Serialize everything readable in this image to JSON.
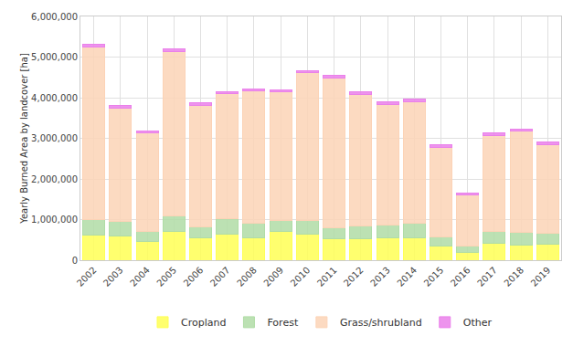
{
  "chart_data": {
    "type": "bar",
    "y_label": "Yearly Burned Area by landcover [ha]",
    "categories": [
      "2002",
      "2003",
      "2004",
      "2005",
      "2006",
      "2007",
      "2008",
      "2009",
      "2010",
      "2011",
      "2012",
      "2013",
      "2014",
      "2015",
      "2016",
      "2017",
      "2018",
      "2019"
    ],
    "series": [
      {
        "name": "Cropland",
        "color": "#ffff55",
        "values": [
          620000,
          600000,
          450000,
          700000,
          560000,
          650000,
          550000,
          700000,
          650000,
          530000,
          520000,
          560000,
          550000,
          350000,
          180000,
          420000,
          380000,
          400000
        ]
      },
      {
        "name": "Forest",
        "color": "#b0dca6",
        "values": [
          380000,
          360000,
          250000,
          400000,
          270000,
          370000,
          370000,
          280000,
          320000,
          270000,
          330000,
          300000,
          350000,
          230000,
          170000,
          280000,
          310000,
          260000
        ]
      },
      {
        "name": "Grass/shrubland",
        "color": "#fcd3b6",
        "values": [
          4250000,
          2790000,
          2430000,
          4040000,
          2970000,
          3080000,
          3250000,
          3170000,
          3640000,
          3680000,
          3240000,
          2980000,
          3000000,
          2190000,
          1260000,
          2360000,
          2490000,
          2190000
        ]
      },
      {
        "name": "Other",
        "color": "#ea80ea",
        "values": [
          60000,
          60000,
          50000,
          70000,
          70000,
          50000,
          50000,
          50000,
          60000,
          60000,
          60000,
          60000,
          60000,
          70000,
          50000,
          70000,
          50000,
          50000
        ]
      }
    ],
    "ylim": [
      0,
      6000000
    ],
    "yticks": [
      0,
      {
        "value": 1000000,
        "label": "1,000,000"
      },
      {
        "value": 2000000,
        "label": "2,000,000"
      },
      {
        "value": 3000000,
        "label": "3,000,000"
      },
      {
        "value": 4000000,
        "label": "4,000,000"
      },
      {
        "value": 5000000,
        "label": "5,000,000"
      },
      {
        "value": 6000000,
        "label": "6,000,000"
      }
    ],
    "stacked": true,
    "grid": true,
    "legend": "bottom"
  }
}
